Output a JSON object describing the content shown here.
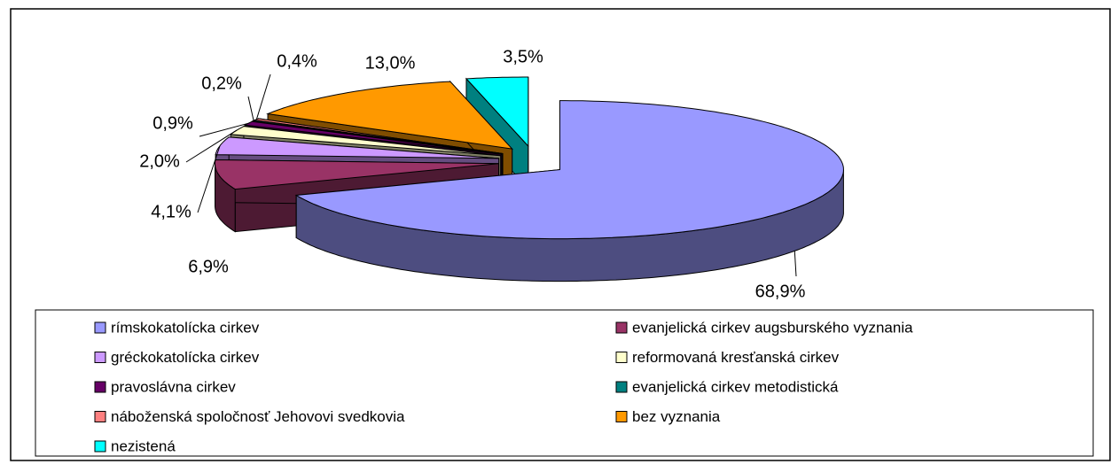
{
  "chart_data": {
    "type": "pie",
    "categories": [
      "rímskokatolícka cirkev",
      "evanjelická cirkev augsburského vyznania",
      "gréckokatolícka cirkev",
      "reformovaná kresťanská cirkev",
      "pravoslávna cirkev",
      "evanjelická cirkev metodistická",
      "náboženská spoločnosť Jehovovi svedkovia",
      "bez vyznania",
      "nezistená"
    ],
    "values": [
      68.9,
      6.9,
      4.1,
      2.0,
      0.9,
      0.2,
      0.4,
      13.0,
      3.5
    ],
    "value_labels": [
      "68,9%",
      "6,9%",
      "4,1%",
      "2,0%",
      "0,9%",
      "0,2%",
      "0,4%",
      "13,0%",
      "3,5%"
    ],
    "colors": [
      "#9999ff",
      "#993366",
      "#cc99ff",
      "#ffffcc",
      "#660066",
      "#008080",
      "#ff8080",
      "#ff9900",
      "#00ffff"
    ],
    "legend": "bottom"
  }
}
